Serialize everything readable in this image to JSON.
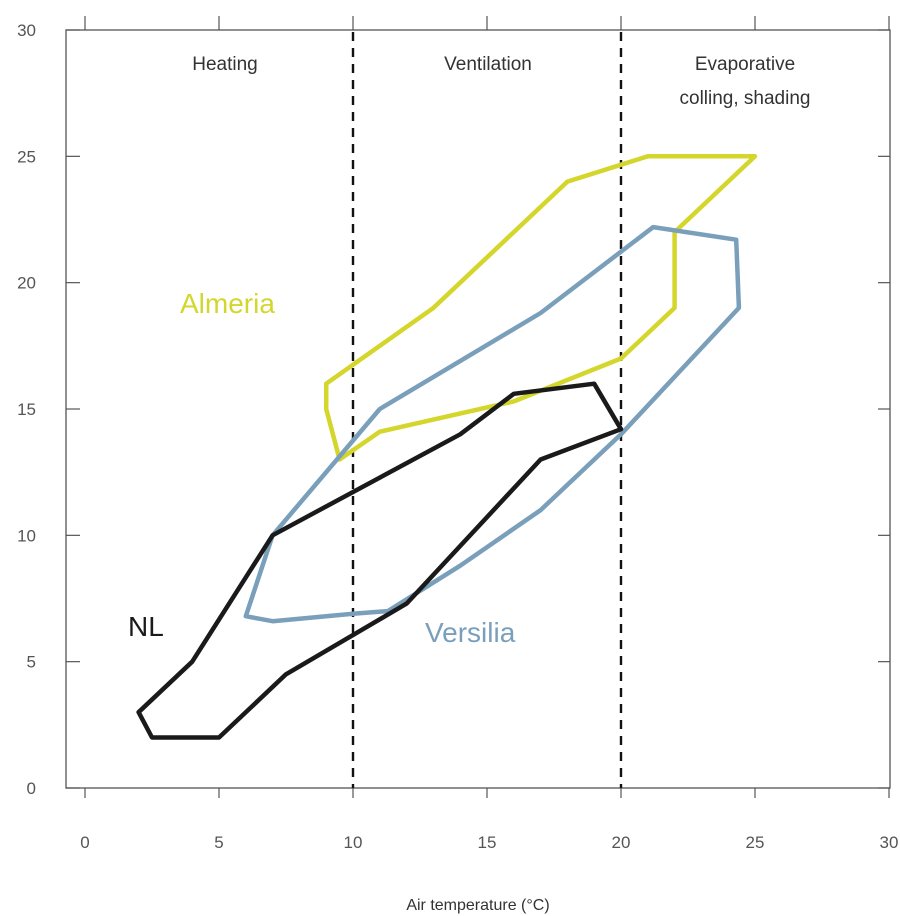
{
  "chart_data": {
    "type": "area",
    "title": "",
    "xlabel": "Air temperature (°C)",
    "ylabel": "",
    "xlim": [
      0,
      30
    ],
    "ylim": [
      0,
      30
    ],
    "x_ticks": [
      "0",
      "5",
      "10",
      "15",
      "20",
      "25",
      "30"
    ],
    "y_ticks": [
      "0",
      "5",
      "10",
      "15",
      "20",
      "25",
      "30"
    ],
    "grid": false,
    "zones": [
      {
        "label_lines": [
          "Heating"
        ]
      },
      {
        "label_lines": [
          "Ventilation"
        ]
      },
      {
        "label_lines": [
          "Evaporative",
          "colling, shading"
        ]
      }
    ],
    "zone_boundaries": [
      10,
      20
    ],
    "series": [
      {
        "name": "Almeria",
        "color": "#d4d62b",
        "points": [
          [
            9,
            16
          ],
          [
            13,
            19
          ],
          [
            18,
            24
          ],
          [
            21,
            25
          ],
          [
            25,
            25
          ],
          [
            22,
            22
          ],
          [
            22,
            19
          ],
          [
            20,
            17
          ],
          [
            16,
            15.3
          ],
          [
            11,
            14.1
          ],
          [
            9.5,
            13
          ],
          [
            9,
            15
          ],
          [
            9,
            16
          ]
        ]
      },
      {
        "name": "Versilia",
        "color": "#7a9fbb",
        "points": [
          [
            7,
            10
          ],
          [
            11,
            15
          ],
          [
            17,
            18.8
          ],
          [
            21.2,
            22.2
          ],
          [
            24.3,
            21.7
          ],
          [
            24.4,
            19
          ],
          [
            20,
            14
          ],
          [
            17,
            11
          ],
          [
            14,
            8.8
          ],
          [
            11.3,
            7
          ],
          [
            10,
            6.9
          ],
          [
            7,
            6.6
          ],
          [
            6,
            6.8
          ],
          [
            7,
            10
          ]
        ]
      },
      {
        "name": "NL",
        "color": "#1a1a1a",
        "points": [
          [
            7,
            10
          ],
          [
            14,
            14
          ],
          [
            16,
            15.6
          ],
          [
            19,
            16
          ],
          [
            20,
            14.2
          ],
          [
            17,
            13
          ],
          [
            12,
            7.3
          ],
          [
            7.5,
            4.5
          ],
          [
            5,
            2
          ],
          [
            2.5,
            2
          ],
          [
            2,
            3
          ],
          [
            4,
            5
          ],
          [
            7,
            10
          ]
        ]
      }
    ]
  }
}
